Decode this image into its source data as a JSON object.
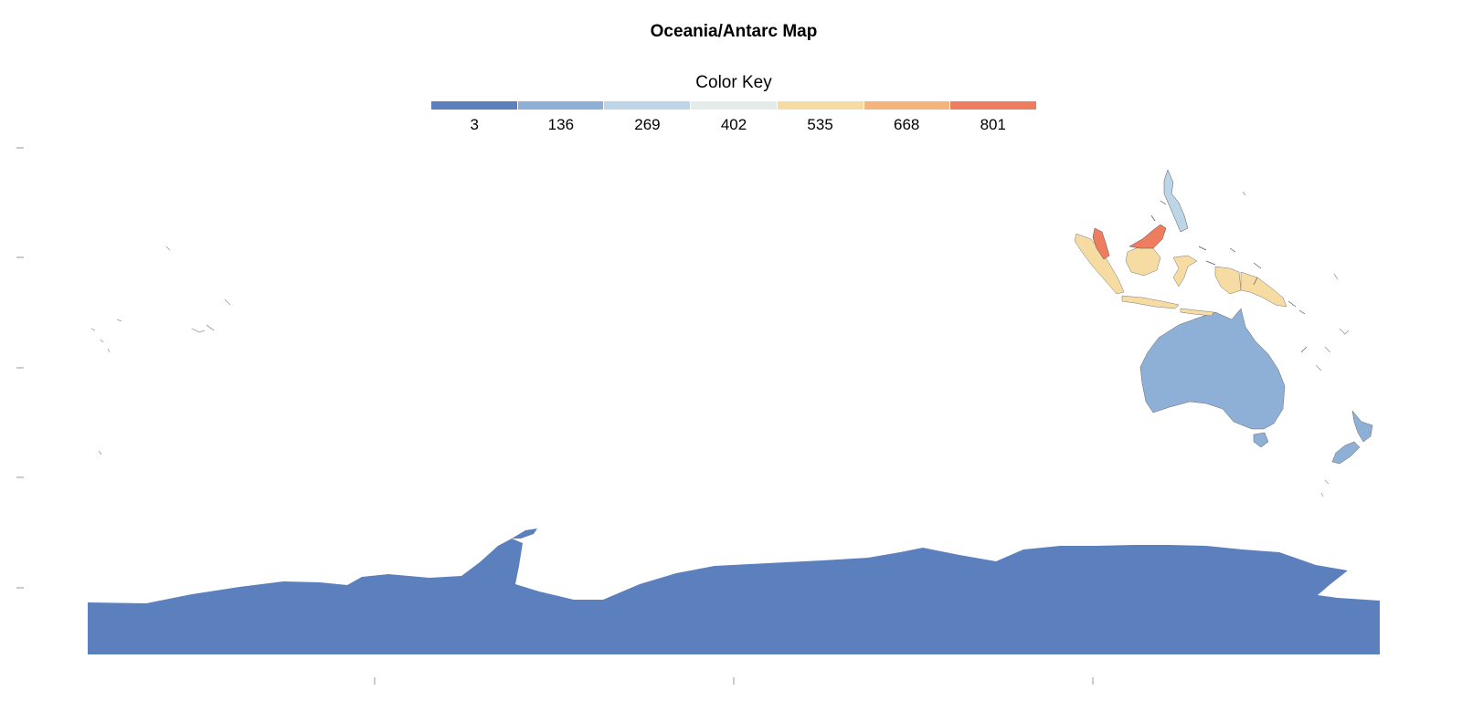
{
  "title": "Oceania/Antarc Map",
  "color_key": {
    "title": "Color Key",
    "bins": [
      {
        "label": "3",
        "color": "#5b80bd"
      },
      {
        "label": "136",
        "color": "#8fb0d6"
      },
      {
        "label": "269",
        "color": "#bcd6e8"
      },
      {
        "label": "402",
        "color": "#e3ece8"
      },
      {
        "label": "535",
        "color": "#f6dca2"
      },
      {
        "label": "668",
        "color": "#f4b47c"
      },
      {
        "label": "801",
        "color": "#ee7d5f"
      }
    ]
  },
  "regions": [
    {
      "name": "Antarctica",
      "bin": 0
    },
    {
      "name": "Australia",
      "bin": 1
    },
    {
      "name": "New Zealand",
      "bin": 1
    },
    {
      "name": "Philippines",
      "bin": 2
    },
    {
      "name": "Indonesia",
      "bin": 4
    },
    {
      "name": "Papua New Guinea",
      "bin": 4
    },
    {
      "name": "Malaysia",
      "bin": 6
    }
  ]
}
